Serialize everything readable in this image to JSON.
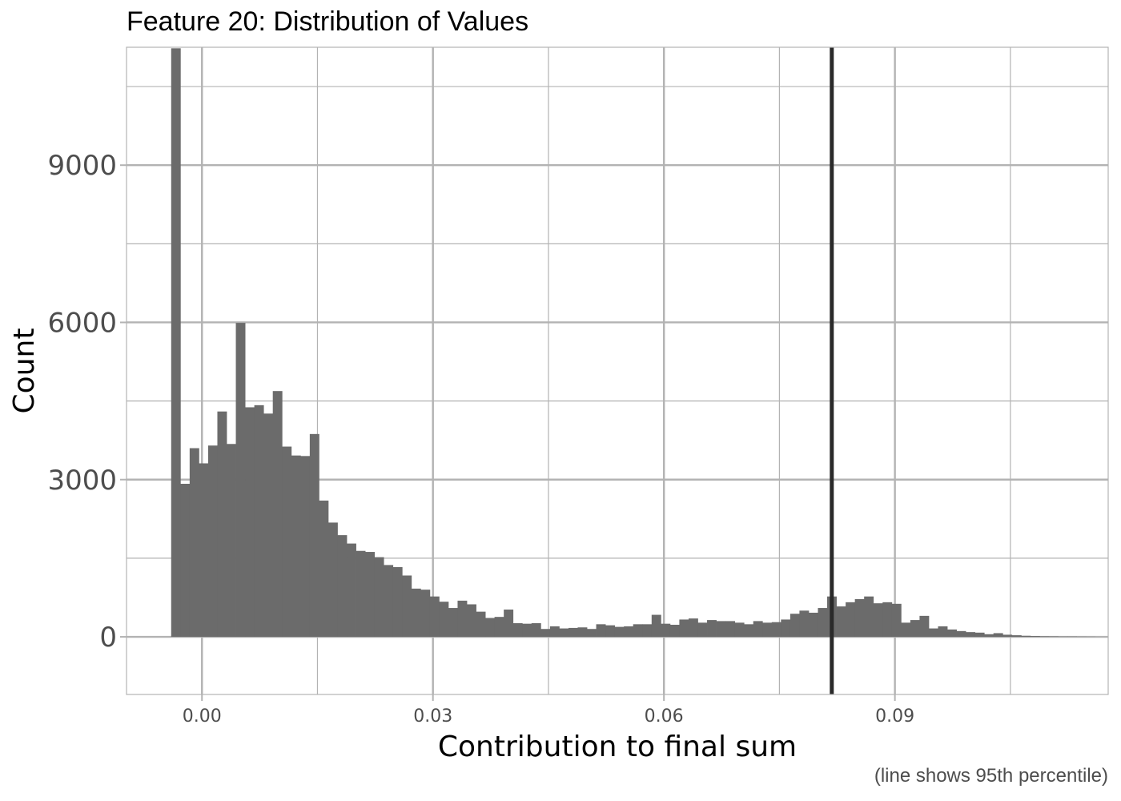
{
  "chart_data": {
    "type": "bar",
    "title": "Feature 20: Distribution of Values",
    "xlabel": "Contribution to final sum",
    "ylabel": "Count",
    "caption": "(line shows 95th percentile)",
    "xlim": [
      -0.0098,
      0.1177
    ],
    "ylim": [
      -1100,
      11250
    ],
    "x_ticks": [
      0.0,
      0.03,
      0.06,
      0.09
    ],
    "x_tick_labels": [
      "0.00",
      "0.03",
      "0.06",
      "0.09"
    ],
    "y_ticks": [
      0,
      3000,
      6000,
      9000
    ],
    "y_tick_labels": [
      "0",
      "3000",
      "6000",
      "9000"
    ],
    "grid": true,
    "bin_width": 0.0012,
    "bin_start": -0.004,
    "counts": [
      11230,
      2920,
      3600,
      3310,
      3650,
      4300,
      3680,
      5990,
      4380,
      4420,
      4260,
      4690,
      3630,
      3460,
      3450,
      3870,
      2600,
      2180,
      1940,
      1780,
      1640,
      1620,
      1520,
      1370,
      1330,
      1170,
      920,
      900,
      770,
      670,
      550,
      690,
      620,
      480,
      360,
      380,
      520,
      260,
      250,
      260,
      150,
      200,
      160,
      170,
      180,
      150,
      240,
      220,
      190,
      200,
      240,
      240,
      420,
      250,
      230,
      330,
      350,
      270,
      320,
      300,
      300,
      270,
      240,
      300,
      270,
      280,
      330,
      440,
      500,
      460,
      550,
      770,
      580,
      660,
      720,
      770,
      640,
      660,
      630,
      270,
      320,
      400,
      160,
      200,
      140,
      110,
      90,
      80,
      50,
      70,
      40,
      30,
      20,
      15,
      10,
      8,
      5,
      5,
      3,
      2
    ],
    "percentile_line": {
      "label": "95th percentile",
      "x": 0.0818
    },
    "colors": {
      "bars": "#6b6b6b",
      "line": "#2a2a2a",
      "grid": "#b3b3b3",
      "panel_border": "#b3b3b3"
    }
  }
}
